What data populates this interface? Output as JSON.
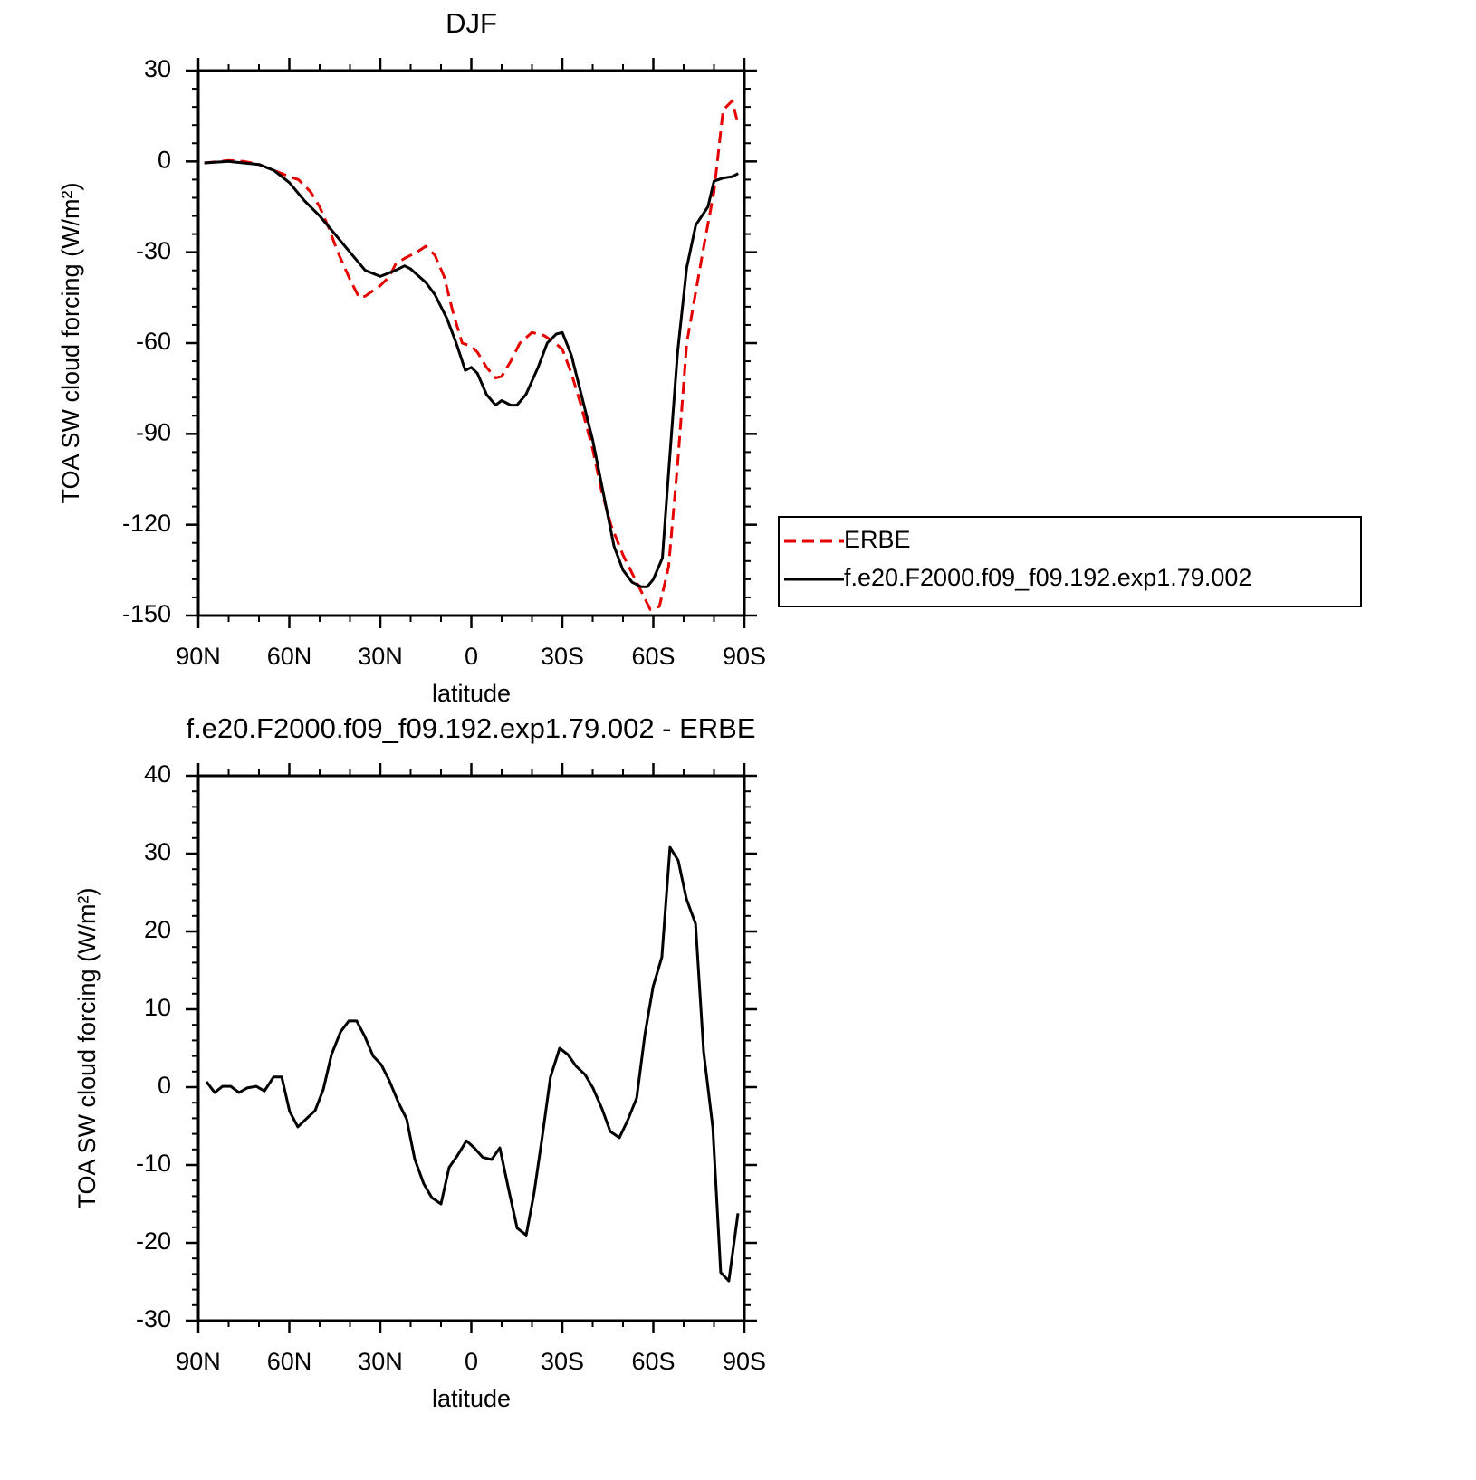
{
  "chart_data": [
    {
      "type": "line",
      "title": "DJF",
      "xlabel": "latitude",
      "ylabel": "TOA SW cloud forcing (W/m²)",
      "xlim": [
        90,
        -90
      ],
      "xticks": [
        {
          "value": 90,
          "label": "90N"
        },
        {
          "value": 60,
          "label": "60N"
        },
        {
          "value": 30,
          "label": "30N"
        },
        0,
        {
          "value": -30,
          "label": "30S"
        },
        {
          "value": -60,
          "label": "60S"
        },
        {
          "value": -90,
          "label": "90S"
        }
      ],
      "ylim": [
        -150,
        30
      ],
      "yticks": [
        -150,
        -120,
        -90,
        -60,
        -30,
        0,
        30
      ],
      "legend": "right",
      "series": [
        {
          "name": "ERBE",
          "color": "#e60000",
          "style": "dashed",
          "x": [
            88,
            80,
            75,
            70,
            65,
            60,
            57,
            53,
            50,
            47,
            44,
            40,
            37,
            35,
            30,
            27,
            25,
            22,
            18,
            15,
            12,
            9,
            6,
            3,
            0,
            -2,
            -5,
            -8,
            -10,
            -13,
            -16,
            -20,
            -24,
            -27,
            -30,
            -33,
            -36,
            -40,
            -43,
            -46,
            -50,
            -53,
            -56,
            -59,
            -62,
            -65,
            -68,
            -71,
            -74,
            -77,
            -80,
            -83,
            -86,
            -88
          ],
          "values": [
            -0.5,
            0.3,
            0,
            -1,
            -3,
            -5,
            -6,
            -10,
            -15,
            -22,
            -30,
            -39,
            -45,
            -44.5,
            -41,
            -38,
            -34,
            -32,
            -30,
            -28,
            -31,
            -38,
            -50,
            -60,
            -61,
            -63,
            -68,
            -71.5,
            -71,
            -66,
            -60,
            -56.5,
            -57.5,
            -59.5,
            -62,
            -70,
            -80,
            -95,
            -109,
            -120,
            -130,
            -136,
            -142,
            -148,
            -147,
            -134,
            -100,
            -60,
            -43,
            -26,
            -10,
            17,
            20,
            12
          ]
        },
        {
          "name": "f.e20.F2000.f09_f09.192.exp1.79.002",
          "color": "#000000",
          "style": "solid",
          "x": [
            88,
            80,
            70,
            65,
            60,
            55,
            50,
            45,
            40,
            35,
            30,
            25,
            22,
            20,
            15,
            12,
            8,
            5,
            2,
            0,
            -2,
            -5,
            -8,
            -10,
            -13,
            -15,
            -18,
            -22,
            -25,
            -28,
            -30,
            -33,
            -36,
            -40,
            -44,
            -47,
            -50,
            -53,
            -56,
            -58,
            -60,
            -63,
            -65,
            -68,
            -71,
            -74,
            -78,
            -80,
            -83,
            -86,
            -88
          ],
          "values": [
            -0.5,
            0,
            -1,
            -3,
            -7,
            -13,
            -18,
            -24,
            -30,
            -36,
            -38,
            -36,
            -34.5,
            -35.5,
            -40,
            -44,
            -52,
            -60,
            -69,
            -68,
            -70,
            -77,
            -80.5,
            -79,
            -80.5,
            -80.5,
            -77,
            -68,
            -60,
            -57,
            -56.5,
            -64,
            -76,
            -92,
            -112,
            -127,
            -135,
            -139,
            -140.5,
            -140.5,
            -138,
            -131,
            -103,
            -63,
            -35,
            -21,
            -15,
            -6.5,
            -5.5,
            -5,
            -4
          ]
        }
      ]
    },
    {
      "type": "line",
      "title": "f.e20.F2000.f09_f09.192.exp1.79.002 - ERBE",
      "xlabel": "latitude",
      "ylabel": "TOA SW cloud forcing (W/m²)",
      "xlim": [
        90,
        -90
      ],
      "xticks": [
        {
          "value": 90,
          "label": "90N"
        },
        {
          "value": 60,
          "label": "60N"
        },
        {
          "value": 30,
          "label": "30N"
        },
        0,
        {
          "value": -30,
          "label": "30S"
        },
        {
          "value": -60,
          "label": "60S"
        },
        {
          "value": -90,
          "label": "90S"
        }
      ],
      "ylim": [
        -30,
        40
      ],
      "yticks": [
        -30,
        -20,
        -10,
        0,
        10,
        20,
        30,
        40
      ],
      "color": "#000000",
      "x": [
        87.3,
        84.6,
        82,
        79.3,
        76.6,
        73.9,
        70.9,
        68.2,
        65.2,
        62.5,
        59.9,
        57.2,
        54.2,
        51.5,
        48.8,
        46.1,
        43.1,
        40.4,
        37.8,
        35.1,
        32.4,
        29.7,
        27,
        24,
        21.3,
        18.7,
        15.7,
        13,
        10,
        7.3,
        4.6,
        1.6,
        -1,
        -3.7,
        -6.7,
        -9.4,
        -12.4,
        -15.1,
        -18.1,
        -20.7,
        -23.4,
        -26.1,
        -29.1,
        -31.8,
        -34.5,
        -37.5,
        -40.1,
        -43.1,
        -45.8,
        -48.8,
        -51.5,
        -54.5,
        -57.2,
        -59.9,
        -62.8,
        -65.5,
        -68.2,
        -70.9,
        -73.9,
        -76.6,
        -79.6,
        -82.2,
        -84.9,
        -87.9
      ],
      "values": [
        0.7,
        -0.7,
        0.1,
        0.1,
        -0.7,
        -0.1,
        0.1,
        -0.5,
        1.3,
        1.3,
        -3.1,
        -5.1,
        -4,
        -3,
        -0.3,
        4.2,
        7.1,
        8.5,
        8.5,
        6.5,
        4,
        2.9,
        0.8,
        -2,
        -4.1,
        -9.2,
        -12.4,
        -14.2,
        -15,
        -10.3,
        -8.8,
        -6.9,
        -7.8,
        -9,
        -9.3,
        -7.8,
        -13.3,
        -18.1,
        -19,
        -13.6,
        -6.3,
        1.3,
        5,
        4.2,
        2.7,
        1.6,
        -0.1,
        -2.8,
        -5.7,
        -6.5,
        -4.3,
        -1.4,
        6.7,
        12.9,
        16.7,
        30.8,
        29.1,
        24.2,
        21,
        4.5,
        -5.2,
        -23.8,
        -24.9,
        -16.2
      ]
    }
  ]
}
